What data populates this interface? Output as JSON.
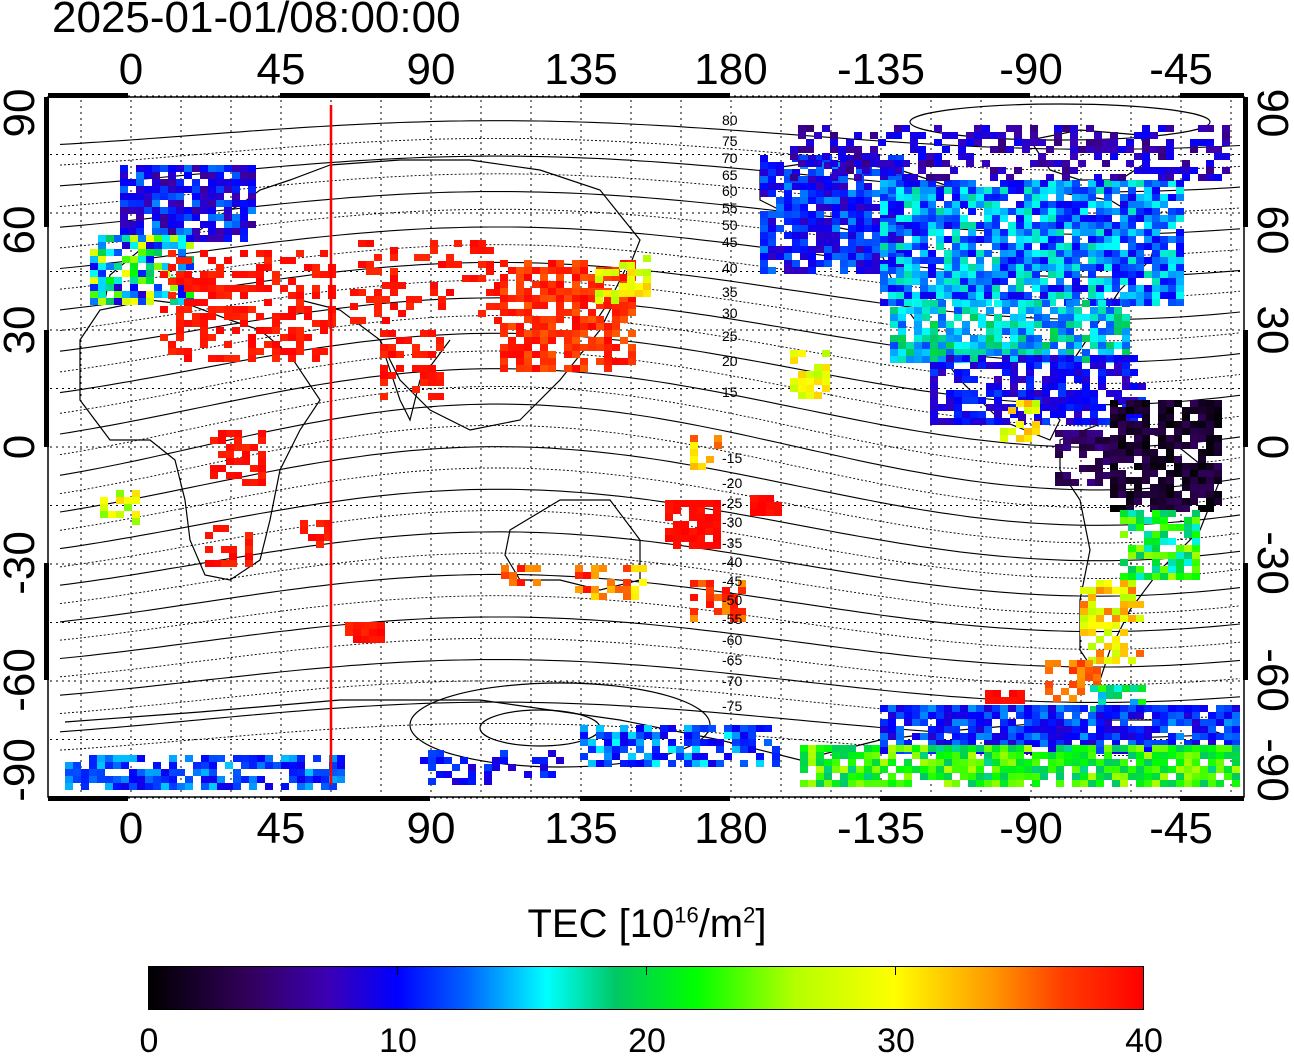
{
  "title": "2025-01-01/08:00:00",
  "top_axis_labels": [
    "0",
    "45",
    "90",
    "135",
    "180",
    "-135",
    "-90",
    "-45"
  ],
  "bottom_axis_labels": [
    "0",
    "45",
    "90",
    "135",
    "180",
    "-135",
    "-90",
    "-45"
  ],
  "left_axis_labels": [
    "90",
    "60",
    "30",
    "0",
    "-30",
    "-60",
    "-90"
  ],
  "right_axis_labels": [
    "90",
    "60",
    "30",
    "0",
    "-30",
    "-60",
    "-90"
  ],
  "contour_labels": [
    "80",
    "75",
    "70",
    "65",
    "60",
    "55",
    "50",
    "45",
    "40",
    "35",
    "30",
    "25",
    "20",
    "15",
    "-15",
    "-20",
    "-25",
    "-30",
    "-35",
    "-40",
    "-45",
    "-50",
    "-55",
    "-60",
    "-65",
    "-70",
    "-75"
  ],
  "colorbar": {
    "title_main": "TEC  [10",
    "title_sup1": "16",
    "title_mid": "/m",
    "title_sup2": "2",
    "title_end": "]",
    "tick_labels": [
      "0",
      "10",
      "20",
      "30",
      "40"
    ],
    "min": 0,
    "max": 40
  },
  "terminator_longitude": 60,
  "colors": {
    "terminator": "#ff0000",
    "grid": "#000000",
    "coast": "#000000"
  }
}
